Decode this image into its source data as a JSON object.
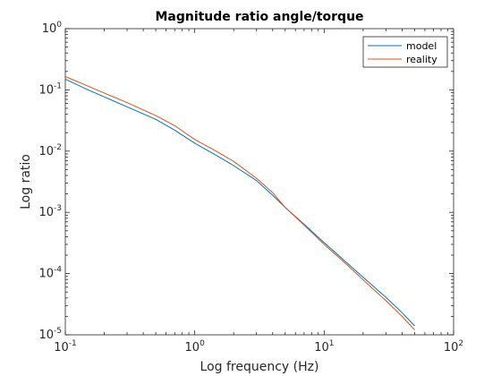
{
  "chart_data": {
    "type": "line",
    "title": "Magnitude ratio angle/torque",
    "xlabel": "Log frequency (Hz)",
    "ylabel": "Log ratio",
    "xscale": "log",
    "yscale": "log",
    "xlim": [
      0.1,
      100
    ],
    "ylim": [
      1e-05,
      1
    ],
    "x_ticks": [
      {
        "value": 0.1,
        "base": "10",
        "exp": "-1"
      },
      {
        "value": 1,
        "base": "10",
        "exp": "0"
      },
      {
        "value": 10,
        "base": "10",
        "exp": "1"
      },
      {
        "value": 100,
        "base": "10",
        "exp": "2"
      }
    ],
    "y_ticks": [
      {
        "value": 1e-05,
        "base": "10",
        "exp": "-5"
      },
      {
        "value": 0.0001,
        "base": "10",
        "exp": "-4"
      },
      {
        "value": 0.001,
        "base": "10",
        "exp": "-3"
      },
      {
        "value": 0.01,
        "base": "10",
        "exp": "-2"
      },
      {
        "value": 0.1,
        "base": "10",
        "exp": "-1"
      },
      {
        "value": 1,
        "base": "10",
        "exp": "0"
      }
    ],
    "grid": false,
    "legend_position": "top-right",
    "series": [
      {
        "name": "model",
        "color": "#0072BD",
        "x": [
          0.1,
          0.15,
          0.2,
          0.3,
          0.5,
          0.7,
          1.0,
          1.5,
          2.0,
          3.0,
          4.0,
          5.0,
          7.0,
          10.0,
          15.0,
          20.0,
          30.0,
          40.0,
          50.0
        ],
        "y": [
          0.15,
          0.1,
          0.077,
          0.053,
          0.033,
          0.022,
          0.0135,
          0.0083,
          0.0058,
          0.0033,
          0.0019,
          0.0012,
          0.00064,
          0.00032,
          0.00015,
          8.7e-05,
          4.1e-05,
          2.3e-05,
          1.4e-05
        ]
      },
      {
        "name": "reality",
        "color": "#D95319",
        "x": [
          0.1,
          0.15,
          0.2,
          0.3,
          0.5,
          0.7,
          1.0,
          1.5,
          2.0,
          3.0,
          4.0,
          5.0,
          7.0,
          10.0,
          15.0,
          20.0,
          30.0,
          40.0,
          50.0
        ],
        "y": [
          0.165,
          0.115,
          0.089,
          0.062,
          0.038,
          0.026,
          0.0155,
          0.0097,
          0.0068,
          0.0036,
          0.0021,
          0.0012,
          0.00062,
          0.0003,
          0.00014,
          7.9e-05,
          3.6e-05,
          2e-05,
          1.2e-05
        ]
      }
    ]
  }
}
